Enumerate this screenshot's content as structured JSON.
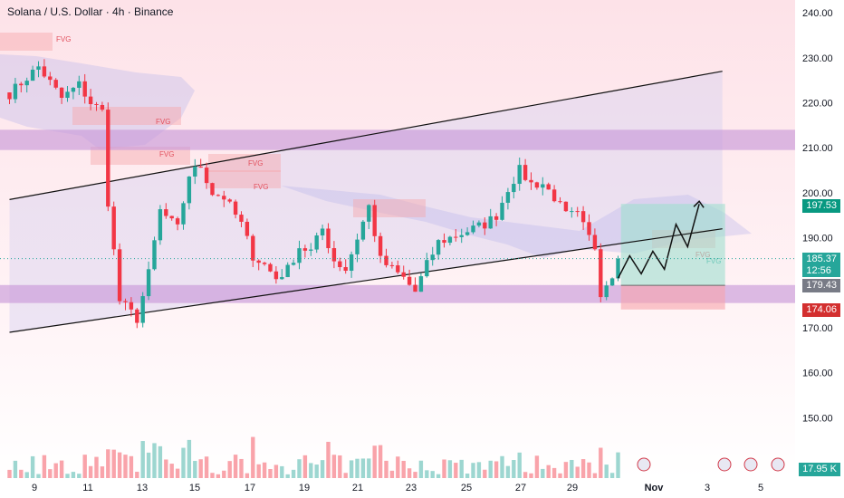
{
  "header": {
    "title": "Solana / U.S. Dollar · 4h · Binance"
  },
  "colors": {
    "up": "#26a69a",
    "down": "#f23645",
    "zone": "#c99ad8",
    "fvg": "#f7a6aa",
    "channel": "#d8d0f0"
  },
  "badges": {
    "target": "197.53",
    "price": "185.37",
    "countdown": "12:56",
    "entry": "179.43",
    "stop": "174.06",
    "volume": "17.95 K"
  },
  "chart_data": {
    "type": "candlestick",
    "title": "Solana / U.S. Dollar · 4h · Binance",
    "xlabel": "",
    "ylabel": "",
    "ylim": [
      140,
      245
    ],
    "y_ticks": [
      150,
      160,
      170,
      180,
      190,
      200,
      210,
      220,
      230,
      240
    ],
    "x_ticks": [
      "9",
      "11",
      "13",
      "15",
      "17",
      "19",
      "21",
      "23",
      "25",
      "27",
      "29",
      "Nov",
      "3",
      "5"
    ],
    "fvg_labels": [
      "FVG",
      "FVG",
      "FVG",
      "FVG",
      "FVG",
      "FVG",
      "FVG"
    ],
    "price_waypoints": [
      [
        0,
        222
      ],
      [
        5,
        228
      ],
      [
        9,
        221
      ],
      [
        12,
        224
      ],
      [
        14,
        220
      ],
      [
        16,
        218
      ],
      [
        17,
        198
      ],
      [
        19,
        176
      ],
      [
        22,
        172
      ],
      [
        24,
        182
      ],
      [
        26,
        196
      ],
      [
        29,
        192
      ],
      [
        31,
        204
      ],
      [
        33,
        206
      ],
      [
        35,
        200
      ],
      [
        37,
        199
      ],
      [
        40,
        193
      ],
      [
        42,
        186
      ],
      [
        44,
        184
      ],
      [
        46,
        181
      ],
      [
        48,
        183
      ],
      [
        50,
        188
      ],
      [
        52,
        187
      ],
      [
        54,
        192
      ],
      [
        56,
        185
      ],
      [
        58,
        183
      ],
      [
        60,
        190
      ],
      [
        62,
        197
      ],
      [
        64,
        185
      ],
      [
        66,
        183
      ],
      [
        68,
        181
      ],
      [
        70,
        178
      ],
      [
        72,
        184
      ],
      [
        74,
        189
      ],
      [
        76,
        190
      ],
      [
        78,
        191
      ],
      [
        80,
        192
      ],
      [
        82,
        193
      ],
      [
        84,
        195
      ],
      [
        86,
        201
      ],
      [
        88,
        205
      ],
      [
        90,
        202
      ],
      [
        92,
        202
      ],
      [
        94,
        199
      ],
      [
        96,
        195
      ],
      [
        98,
        195
      ],
      [
        100,
        190
      ],
      [
        101,
        188
      ],
      [
        102,
        178
      ],
      [
        104,
        182
      ],
      [
        105,
        185.37
      ]
    ],
    "resistance_zone": [
      209.5,
      214
    ],
    "support_zone": [
      175.5,
      179.5
    ],
    "channel": {
      "upper": [
        [
          0,
          198.5
        ],
        [
          123,
          227
        ]
      ],
      "lower": [
        [
          0,
          169
        ],
        [
          123,
          192
        ]
      ]
    },
    "position": {
      "entry": 179.43,
      "target": 197.53,
      "stop": 174.06
    },
    "projection": [
      [
        105,
        181
      ],
      [
        107,
        186
      ],
      [
        109,
        182
      ],
      [
        111,
        187
      ],
      [
        113,
        183
      ],
      [
        115,
        193
      ],
      [
        117,
        188
      ],
      [
        119,
        197.5
      ]
    ]
  }
}
